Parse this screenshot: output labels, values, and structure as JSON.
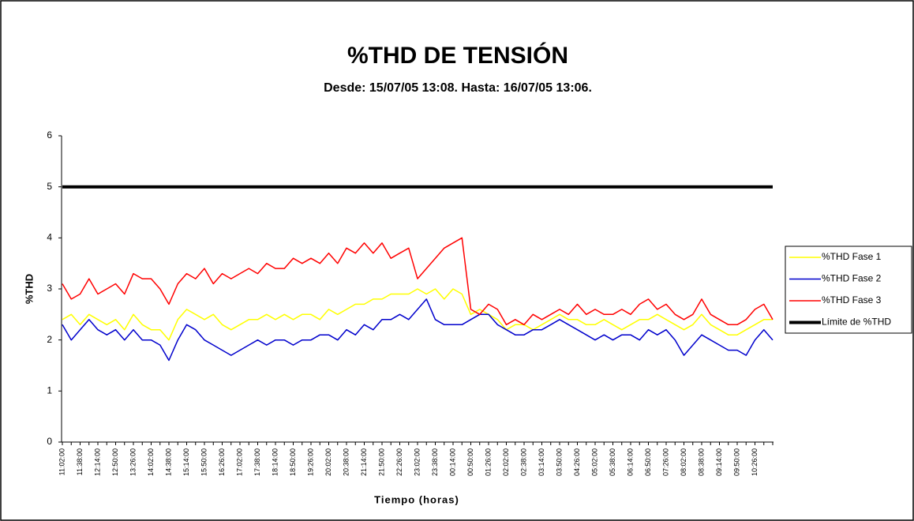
{
  "chart_data": {
    "type": "line",
    "title": "%THD DE TENSIÓN",
    "subtitle": "Desde: 15/07/05 13:08. Hasta: 16/07/05 13:06.",
    "x_label": "Tiempo (horas)",
    "y_label": "%THD",
    "categories": [
      "11:02:00",
      null,
      "11:38:00",
      null,
      "12:14:00",
      null,
      "12:50:00",
      null,
      "13:26:00",
      null,
      "14:02:00",
      null,
      "14:38:00",
      null,
      "15:14:00",
      null,
      "15:50:00",
      null,
      "16:26:00",
      null,
      "17:02:00",
      null,
      "17:38:00",
      null,
      "18:14:00",
      null,
      "18:50:00",
      null,
      "19:26:00",
      null,
      "20:02:00",
      null,
      "20:38:00",
      null,
      "21:14:00",
      null,
      "21:50:00",
      null,
      "22:26:00",
      null,
      "23:02:00",
      null,
      "23:38:00",
      null,
      "00:14:00",
      null,
      "00:50:00",
      null,
      "01:26:00",
      null,
      "02:02:00",
      null,
      "02:38:00",
      null,
      "03:14:00",
      null,
      "03:50:00",
      null,
      "04:26:00",
      null,
      "05:02:00",
      null,
      "05:38:00",
      null,
      "06:14:00",
      null,
      "06:50:00",
      null,
      "07:26:00",
      null,
      "08:02:00",
      null,
      "08:38:00",
      null,
      "09:14:00",
      null,
      "09:50:00",
      null,
      "10:26:00",
      null,
      null
    ],
    "series": [
      {
        "name": "%THD Fase 1",
        "color": "#ffff00",
        "width": 1.5,
        "values": [
          2.4,
          2.5,
          2.3,
          2.5,
          2.4,
          2.3,
          2.4,
          2.2,
          2.5,
          2.3,
          2.2,
          2.2,
          2.0,
          2.4,
          2.6,
          2.5,
          2.4,
          2.5,
          2.3,
          2.2,
          2.3,
          2.4,
          2.4,
          2.5,
          2.4,
          2.5,
          2.4,
          2.5,
          2.5,
          2.4,
          2.6,
          2.5,
          2.6,
          2.7,
          2.7,
          2.8,
          2.8,
          2.9,
          2.9,
          2.9,
          3.0,
          2.9,
          3.0,
          2.8,
          3.0,
          2.9,
          2.5,
          2.6,
          2.5,
          2.4,
          2.2,
          2.3,
          2.3,
          2.2,
          2.3,
          2.4,
          2.5,
          2.4,
          2.4,
          2.3,
          2.3,
          2.4,
          2.3,
          2.2,
          2.3,
          2.4,
          2.4,
          2.5,
          2.4,
          2.3,
          2.2,
          2.3,
          2.5,
          2.3,
          2.2,
          2.1,
          2.1,
          2.2,
          2.3,
          2.4,
          2.4
        ]
      },
      {
        "name": "%THD Fase 2",
        "color": "#0000cc",
        "width": 1.5,
        "values": [
          2.3,
          2.0,
          2.2,
          2.4,
          2.2,
          2.1,
          2.2,
          2.0,
          2.2,
          2.0,
          2.0,
          1.9,
          1.6,
          2.0,
          2.3,
          2.2,
          2.0,
          1.9,
          1.8,
          1.7,
          1.8,
          1.9,
          2.0,
          1.9,
          2.0,
          2.0,
          1.9,
          2.0,
          2.0,
          2.1,
          2.1,
          2.0,
          2.2,
          2.1,
          2.3,
          2.2,
          2.4,
          2.4,
          2.5,
          2.4,
          2.6,
          2.8,
          2.4,
          2.3,
          2.3,
          2.3,
          2.4,
          2.5,
          2.5,
          2.3,
          2.2,
          2.1,
          2.1,
          2.2,
          2.2,
          2.3,
          2.4,
          2.3,
          2.2,
          2.1,
          2.0,
          2.1,
          2.0,
          2.1,
          2.1,
          2.0,
          2.2,
          2.1,
          2.2,
          2.0,
          1.7,
          1.9,
          2.1,
          2.0,
          1.9,
          1.8,
          1.8,
          1.7,
          2.0,
          2.2,
          2.0
        ]
      },
      {
        "name": "%THD Fase 3",
        "color": "#ff0000",
        "width": 1.5,
        "values": [
          3.1,
          2.8,
          2.9,
          3.2,
          2.9,
          3.0,
          3.1,
          2.9,
          3.3,
          3.2,
          3.2,
          3.0,
          2.7,
          3.1,
          3.3,
          3.2,
          3.4,
          3.1,
          3.3,
          3.2,
          3.3,
          3.4,
          3.3,
          3.5,
          3.4,
          3.4,
          3.6,
          3.5,
          3.6,
          3.5,
          3.7,
          3.5,
          3.8,
          3.7,
          3.9,
          3.7,
          3.9,
          3.6,
          3.7,
          3.8,
          3.2,
          3.4,
          3.6,
          3.8,
          3.9,
          4.0,
          2.6,
          2.5,
          2.7,
          2.6,
          2.3,
          2.4,
          2.3,
          2.5,
          2.4,
          2.5,
          2.6,
          2.5,
          2.7,
          2.5,
          2.6,
          2.5,
          2.5,
          2.6,
          2.5,
          2.7,
          2.8,
          2.6,
          2.7,
          2.5,
          2.4,
          2.5,
          2.8,
          2.5,
          2.4,
          2.3,
          2.3,
          2.4,
          2.6,
          2.7,
          2.4
        ]
      },
      {
        "name": "Límite de %THD",
        "color": "#000000",
        "width": 4,
        "values": [
          5,
          5,
          5,
          5,
          5,
          5,
          5,
          5,
          5,
          5,
          5,
          5,
          5,
          5,
          5,
          5,
          5,
          5,
          5,
          5,
          5,
          5,
          5,
          5,
          5,
          5,
          5,
          5,
          5,
          5,
          5,
          5,
          5,
          5,
          5,
          5,
          5,
          5,
          5,
          5,
          5,
          5,
          5,
          5,
          5,
          5,
          5,
          5,
          5,
          5,
          5,
          5,
          5,
          5,
          5,
          5,
          5,
          5,
          5,
          5,
          5,
          5,
          5,
          5,
          5,
          5,
          5,
          5,
          5,
          5,
          5,
          5,
          5,
          5,
          5,
          5,
          5,
          5,
          5,
          5,
          5
        ]
      }
    ],
    "ylim": [
      0,
      6
    ],
    "yticks": [
      0,
      1,
      2,
      3,
      4,
      5,
      6
    ],
    "grid": false,
    "legend": "right"
  }
}
